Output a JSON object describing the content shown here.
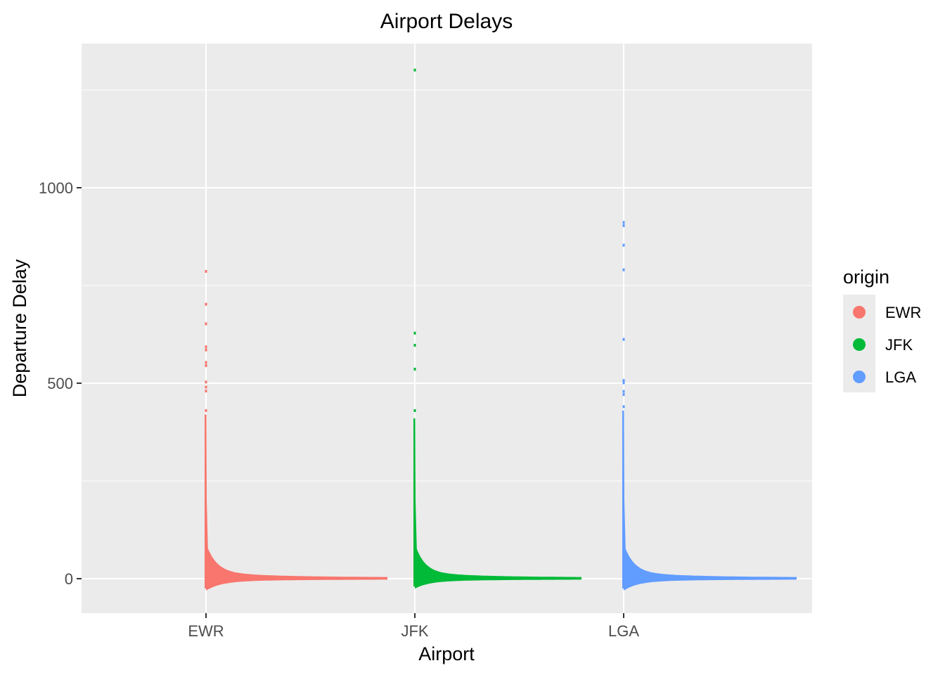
{
  "chart_data": {
    "type": "scatter",
    "title": "Airport Delays",
    "xlabel": "Airport",
    "ylabel": "Departure Delay",
    "categories": [
      "EWR",
      "JFK",
      "LGA"
    ],
    "ylim": [
      -90,
      1365
    ],
    "y_ticks": [
      0,
      500,
      1000
    ],
    "y_tick_labels": [
      "0",
      "500",
      "1000"
    ],
    "grid": true,
    "legend": {
      "title": "origin",
      "position": "right",
      "entries": [
        "EWR",
        "JFK",
        "LGA"
      ]
    },
    "series": [
      {
        "name": "EWR",
        "color": "#F8766D",
        "min": -25,
        "tail_outliers": [
          786,
          702,
          652,
          593,
          585,
          553,
          545,
          503,
          490,
          480,
          430
        ],
        "body_max": 420
      },
      {
        "name": "JFK",
        "color": "#00BA38",
        "min": -20,
        "tail_outliers": [
          1301,
          628,
          597,
          536,
          430
        ],
        "body_max": 410
      },
      {
        "name": "LGA",
        "color": "#619CFF",
        "min": -25,
        "tail_outliers": [
          911,
          903,
          853,
          790,
          612,
          507,
          501,
          479,
          471,
          440
        ],
        "body_max": 430
      }
    ]
  }
}
